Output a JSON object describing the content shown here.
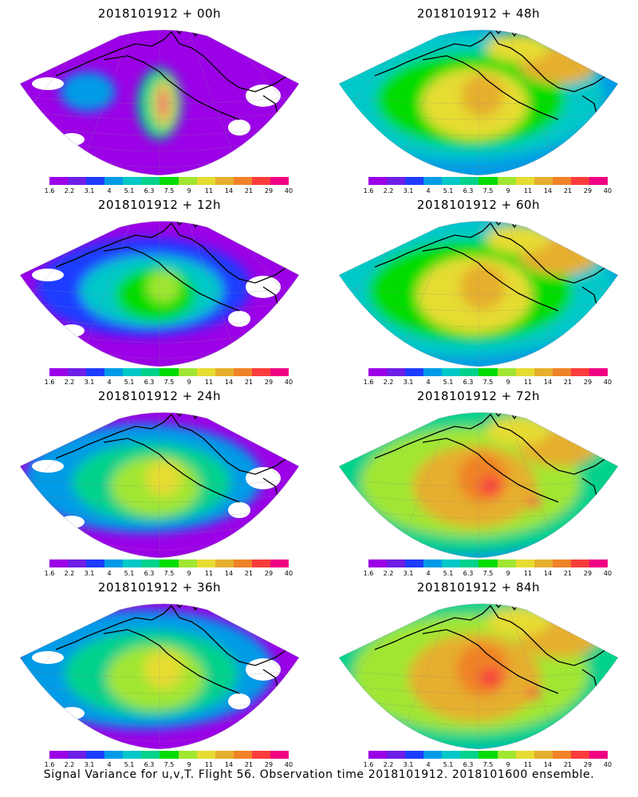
{
  "panels": [
    {
      "title": "2018101912 + 00h",
      "lead": 0
    },
    {
      "title": "2018101912 + 48h",
      "lead": 48
    },
    {
      "title": "2018101912 + 12h",
      "lead": 12
    },
    {
      "title": "2018101912 + 60h",
      "lead": 60
    },
    {
      "title": "2018101912 + 24h",
      "lead": 24
    },
    {
      "title": "2018101912 + 72h",
      "lead": 72
    },
    {
      "title": "2018101912 + 36h",
      "lead": 36
    },
    {
      "title": "2018101912 + 84h",
      "lead": 84
    }
  ],
  "colorbar": {
    "labels": [
      "1.6",
      "2.2",
      "3.1",
      "4",
      "5.1",
      "6.3",
      "7.5",
      "9",
      "11",
      "14",
      "21",
      "29",
      "40"
    ],
    "colors": [
      "#9b00e6",
      "#6e1ee6",
      "#1e3cff",
      "#009be6",
      "#00c8c8",
      "#00d28c",
      "#00dc00",
      "#a0e632",
      "#e6dc32",
      "#e6af2d",
      "#f08228",
      "#fa3c3c",
      "#f00082"
    ]
  },
  "caption": "Signal Variance for u,v,T. Flight 56. Observation time 2018101912. 2018101600 ensemble."
}
